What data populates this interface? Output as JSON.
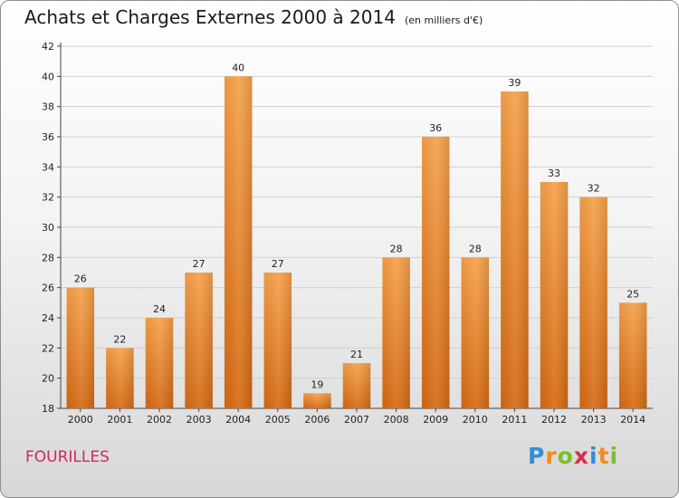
{
  "header": {
    "title": "Achats et Charges Externes 2000 à 2014",
    "subtitle": "(en milliers d'€)"
  },
  "footer": {
    "town": "FOURILLES",
    "logo": "Proxiti"
  },
  "colors": {
    "bar_top": "#f6a14a",
    "bar_bottom": "#d66a14",
    "grid": "#d0d0d0",
    "town": "#cf2a5a"
  },
  "chart_data": {
    "type": "bar",
    "categories": [
      "2000",
      "2001",
      "2002",
      "2003",
      "2004",
      "2005",
      "2006",
      "2007",
      "2008",
      "2009",
      "2010",
      "2011",
      "2012",
      "2013",
      "2014"
    ],
    "values": [
      26,
      22,
      24,
      27,
      40,
      27,
      19,
      21,
      28,
      36,
      28,
      39,
      33,
      32,
      25
    ],
    "ylim": [
      18,
      42
    ],
    "yticks": [
      18,
      20,
      22,
      24,
      26,
      28,
      30,
      32,
      34,
      36,
      38,
      40,
      42
    ],
    "title": "Achats et Charges Externes 2000 à 2014",
    "xlabel": "",
    "ylabel": "",
    "grid": true
  }
}
